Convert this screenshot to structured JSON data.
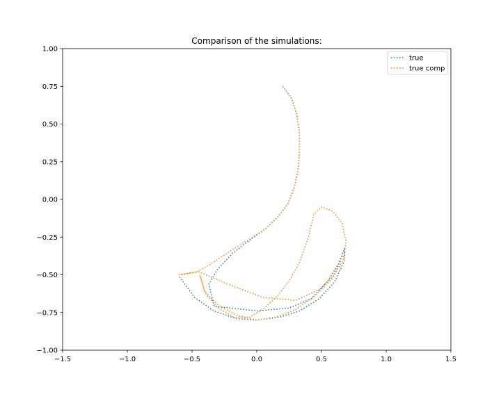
{
  "chart_data": {
    "type": "line",
    "title": "Comparison of the simulations:",
    "xlabel": "",
    "ylabel": "",
    "xlim": [
      -1.5,
      1.5
    ],
    "ylim": [
      -1.0,
      1.0
    ],
    "x_ticks": [
      -1.5,
      -1.0,
      -0.5,
      0.0,
      0.5,
      1.0,
      1.5
    ],
    "x_tick_labels": [
      "−1.5",
      "−1.0",
      "−0.5",
      "0.0",
      "0.5",
      "1.0",
      "1.5"
    ],
    "y_ticks": [
      1.0,
      0.75,
      0.5,
      0.25,
      0.0,
      -0.25,
      -0.5,
      -0.75,
      -1.0
    ],
    "y_tick_labels": [
      "1.00",
      "0.75",
      "0.50",
      "0.25",
      "0.00",
      "−0.25",
      "−0.50",
      "−0.75",
      "−1.00"
    ],
    "grid": false,
    "legend_position": "top-right",
    "series": [
      {
        "name": "true",
        "color": "#1f77b4",
        "line_style": "dotted",
        "points": [
          [
            0.2,
            0.75
          ],
          [
            0.27,
            0.67
          ],
          [
            0.31,
            0.56
          ],
          [
            0.33,
            0.44
          ],
          [
            0.33,
            0.32
          ],
          [
            0.32,
            0.2
          ],
          [
            0.29,
            0.08
          ],
          [
            0.24,
            -0.03
          ],
          [
            0.16,
            -0.12
          ],
          [
            0.06,
            -0.2
          ],
          [
            -0.07,
            -0.28
          ],
          [
            -0.19,
            -0.36
          ],
          [
            -0.3,
            -0.46
          ],
          [
            -0.37,
            -0.56
          ],
          [
            -0.33,
            -0.71
          ],
          [
            -0.2,
            -0.72
          ],
          [
            0.0,
            -0.74
          ],
          [
            0.25,
            -0.72
          ],
          [
            0.42,
            -0.66
          ],
          [
            0.55,
            -0.54
          ],
          [
            0.63,
            -0.43
          ],
          [
            0.68,
            -0.32
          ],
          [
            0.68,
            -0.4
          ],
          [
            0.6,
            -0.55
          ],
          [
            0.48,
            -0.66
          ],
          [
            0.33,
            -0.74
          ],
          [
            0.18,
            -0.78
          ],
          [
            0.0,
            -0.8
          ],
          [
            -0.16,
            -0.79
          ],
          [
            -0.33,
            -0.74
          ],
          [
            -0.48,
            -0.65
          ],
          [
            -0.6,
            -0.51
          ]
        ]
      },
      {
        "name": "true comp",
        "color": "#ff7f0e",
        "line_style": "dotted",
        "points": [
          [
            0.2,
            0.75
          ],
          [
            0.27,
            0.67
          ],
          [
            0.31,
            0.56
          ],
          [
            0.33,
            0.44
          ],
          [
            0.33,
            0.32
          ],
          [
            0.32,
            0.2
          ],
          [
            0.29,
            0.08
          ],
          [
            0.24,
            -0.03
          ],
          [
            0.16,
            -0.12
          ],
          [
            0.06,
            -0.2
          ],
          [
            -0.07,
            -0.27
          ],
          [
            -0.2,
            -0.34
          ],
          [
            -0.34,
            -0.42
          ],
          [
            -0.46,
            -0.48
          ],
          [
            -0.6,
            -0.5
          ],
          [
            -0.45,
            -0.48
          ],
          [
            -0.2,
            -0.57
          ],
          [
            0.05,
            -0.65
          ],
          [
            0.3,
            -0.67
          ],
          [
            0.48,
            -0.6
          ],
          [
            0.6,
            -0.5
          ],
          [
            0.67,
            -0.4
          ],
          [
            0.69,
            -0.28
          ],
          [
            0.66,
            -0.16
          ],
          [
            0.59,
            -0.08
          ],
          [
            0.5,
            -0.05
          ],
          [
            0.44,
            -0.1
          ],
          [
            0.4,
            -0.25
          ],
          [
            0.33,
            -0.42
          ],
          [
            0.25,
            -0.54
          ],
          [
            0.16,
            -0.64
          ],
          [
            0.06,
            -0.72
          ],
          [
            -0.05,
            -0.78
          ],
          [
            -0.18,
            -0.78
          ],
          [
            -0.3,
            -0.72
          ],
          [
            -0.4,
            -0.62
          ],
          [
            -0.44,
            -0.5
          ],
          [
            -0.4,
            -0.61
          ],
          [
            -0.3,
            -0.7
          ],
          [
            -0.15,
            -0.77
          ],
          [
            0.0,
            -0.8
          ],
          [
            0.15,
            -0.78
          ],
          [
            0.3,
            -0.73
          ],
          [
            0.45,
            -0.64
          ],
          [
            0.58,
            -0.53
          ],
          [
            0.68,
            -0.35
          ]
        ]
      }
    ]
  }
}
